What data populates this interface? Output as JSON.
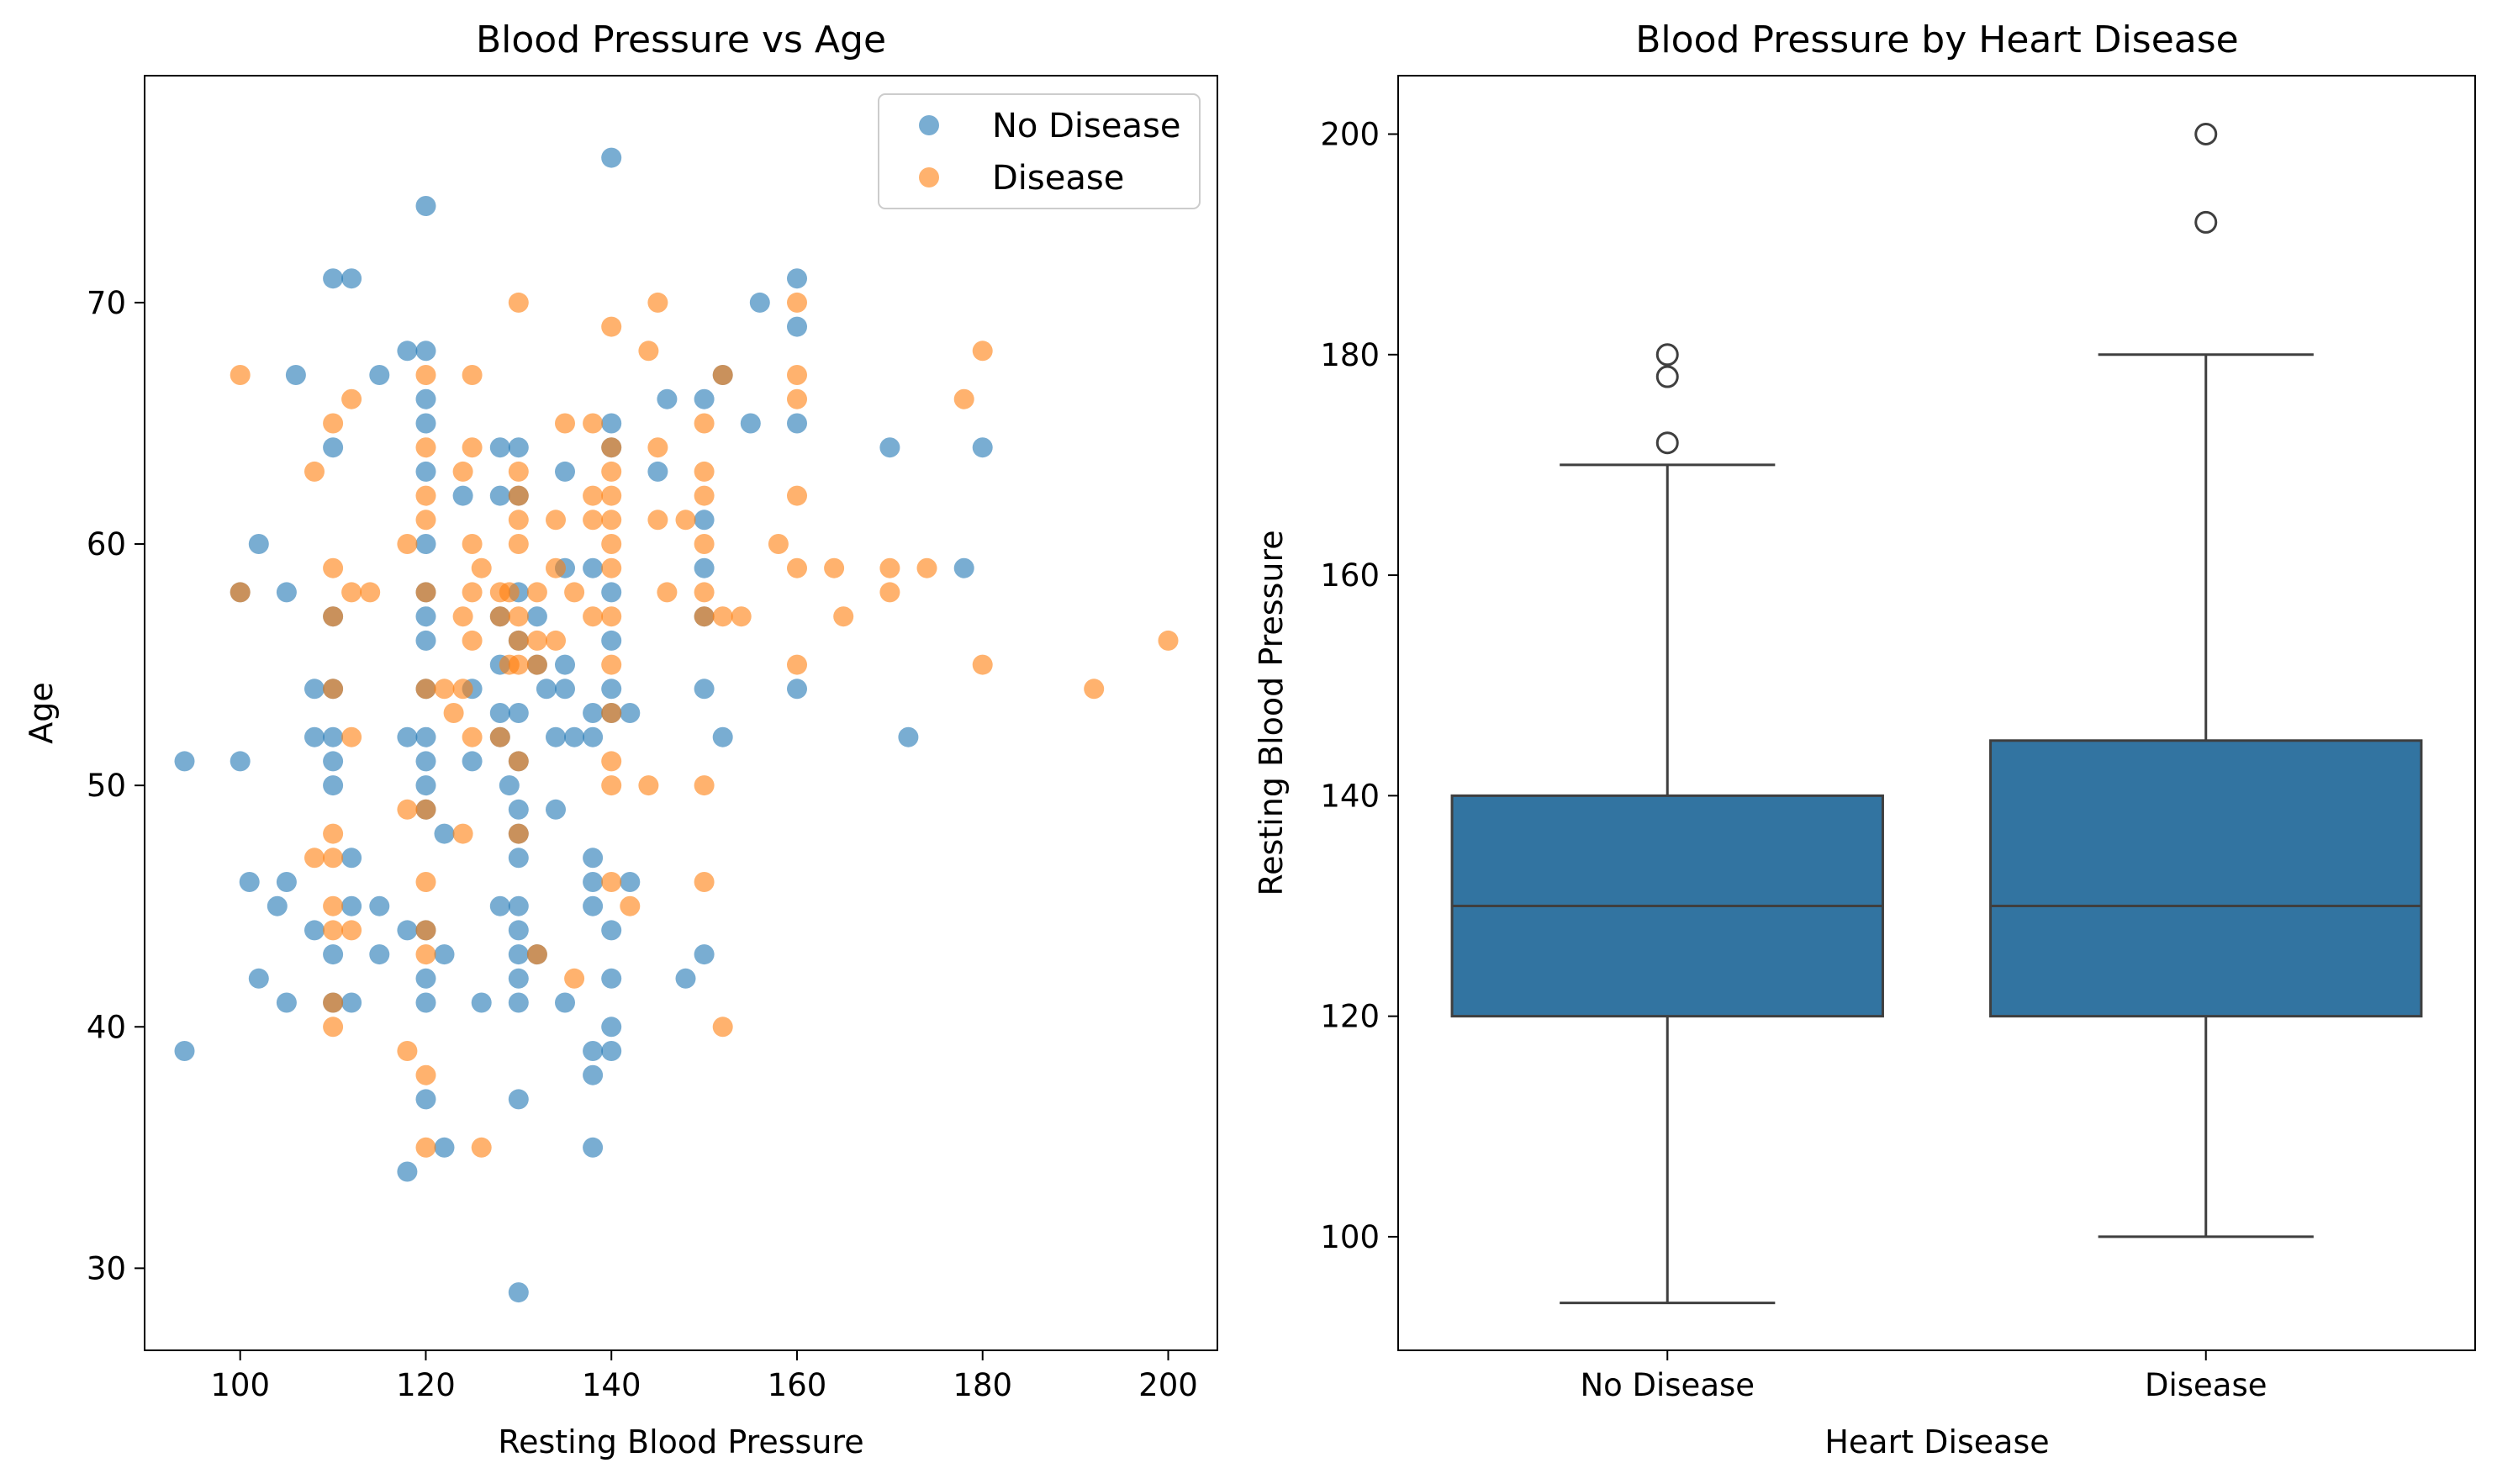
{
  "colors": {
    "no_disease": "#1f77b4",
    "disease": "#ff7f0e",
    "box_fill": "#3274a1",
    "box_edge": "#3f3f3f"
  },
  "chart_data": [
    {
      "type": "scatter",
      "title": "Blood Pressure vs Age",
      "xlabel": "Resting Blood Pressure",
      "ylabel": "Age",
      "xlim": [
        89.7,
        205.3
      ],
      "ylim": [
        26.6,
        79.4
      ],
      "xticks": [
        100,
        120,
        140,
        160,
        180,
        200
      ],
      "yticks": [
        30,
        40,
        50,
        60,
        70
      ],
      "grid": false,
      "legend_position": "top-right",
      "series": [
        {
          "name": "No Disease",
          "color": "#1f77b4",
          "points": [
            [
              94,
              51
            ],
            [
              94,
              39
            ],
            [
              100,
              51
            ],
            [
              100,
              58
            ],
            [
              101,
              46
            ],
            [
              102,
              60
            ],
            [
              102,
              42
            ],
            [
              104,
              45
            ],
            [
              105,
              58
            ],
            [
              105,
              46
            ],
            [
              105,
              41
            ],
            [
              106,
              67
            ],
            [
              108,
              54
            ],
            [
              108,
              52
            ],
            [
              108,
              44
            ],
            [
              110,
              71
            ],
            [
              110,
              64
            ],
            [
              110,
              57
            ],
            [
              110,
              54
            ],
            [
              110,
              52
            ],
            [
              110,
              51
            ],
            [
              110,
              50
            ],
            [
              110,
              43
            ],
            [
              110,
              41
            ],
            [
              112,
              71
            ],
            [
              112,
              47
            ],
            [
              112,
              45
            ],
            [
              112,
              41
            ],
            [
              115,
              67
            ],
            [
              115,
              45
            ],
            [
              115,
              43
            ],
            [
              118,
              68
            ],
            [
              118,
              52
            ],
            [
              118,
              44
            ],
            [
              118,
              34
            ],
            [
              120,
              74
            ],
            [
              120,
              68
            ],
            [
              120,
              66
            ],
            [
              120,
              65
            ],
            [
              120,
              63
            ],
            [
              120,
              60
            ],
            [
              120,
              58
            ],
            [
              120,
              57
            ],
            [
              120,
              56
            ],
            [
              120,
              54
            ],
            [
              120,
              52
            ],
            [
              120,
              51
            ],
            [
              120,
              50
            ],
            [
              120,
              49
            ],
            [
              120,
              44
            ],
            [
              120,
              42
            ],
            [
              120,
              41
            ],
            [
              120,
              37
            ],
            [
              122,
              48
            ],
            [
              122,
              43
            ],
            [
              122,
              35
            ],
            [
              124,
              62
            ],
            [
              125,
              54
            ],
            [
              125,
              51
            ],
            [
              126,
              41
            ],
            [
              128,
              64
            ],
            [
              128,
              62
            ],
            [
              128,
              57
            ],
            [
              128,
              55
            ],
            [
              128,
              53
            ],
            [
              128,
              52
            ],
            [
              128,
              45
            ],
            [
              129,
              50
            ],
            [
              130,
              64
            ],
            [
              130,
              62
            ],
            [
              130,
              58
            ],
            [
              130,
              56
            ],
            [
              130,
              53
            ],
            [
              130,
              51
            ],
            [
              130,
              49
            ],
            [
              130,
              48
            ],
            [
              130,
              47
            ],
            [
              130,
              45
            ],
            [
              130,
              44
            ],
            [
              130,
              43
            ],
            [
              130,
              42
            ],
            [
              130,
              41
            ],
            [
              130,
              37
            ],
            [
              130,
              29
            ],
            [
              132,
              57
            ],
            [
              132,
              55
            ],
            [
              132,
              43
            ],
            [
              133,
              54
            ],
            [
              134,
              52
            ],
            [
              134,
              49
            ],
            [
              135,
              63
            ],
            [
              135,
              59
            ],
            [
              135,
              55
            ],
            [
              135,
              54
            ],
            [
              135,
              41
            ],
            [
              136,
              52
            ],
            [
              138,
              59
            ],
            [
              138,
              53
            ],
            [
              138,
              52
            ],
            [
              138,
              47
            ],
            [
              138,
              46
            ],
            [
              138,
              45
            ],
            [
              138,
              39
            ],
            [
              138,
              38
            ],
            [
              138,
              35
            ],
            [
              140,
              76
            ],
            [
              140,
              65
            ],
            [
              140,
              64
            ],
            [
              140,
              58
            ],
            [
              140,
              56
            ],
            [
              140,
              54
            ],
            [
              140,
              53
            ],
            [
              140,
              44
            ],
            [
              140,
              42
            ],
            [
              140,
              40
            ],
            [
              140,
              39
            ],
            [
              142,
              53
            ],
            [
              142,
              46
            ],
            [
              145,
              63
            ],
            [
              146,
              66
            ],
            [
              148,
              42
            ],
            [
              150,
              66
            ],
            [
              150,
              61
            ],
            [
              150,
              59
            ],
            [
              150,
              57
            ],
            [
              150,
              54
            ],
            [
              150,
              43
            ],
            [
              152,
              67
            ],
            [
              152,
              52
            ],
            [
              155,
              65
            ],
            [
              156,
              70
            ],
            [
              160,
              71
            ],
            [
              160,
              69
            ],
            [
              160,
              65
            ],
            [
              160,
              54
            ],
            [
              170,
              64
            ],
            [
              172,
              52
            ],
            [
              178,
              59
            ],
            [
              180,
              64
            ]
          ]
        },
        {
          "name": "Disease",
          "color": "#ff7f0e",
          "points": [
            [
              100,
              67
            ],
            [
              100,
              58
            ],
            [
              108,
              63
            ],
            [
              108,
              47
            ],
            [
              110,
              65
            ],
            [
              110,
              59
            ],
            [
              110,
              57
            ],
            [
              110,
              54
            ],
            [
              110,
              48
            ],
            [
              110,
              47
            ],
            [
              110,
              45
            ],
            [
              110,
              44
            ],
            [
              110,
              41
            ],
            [
              110,
              40
            ],
            [
              112,
              66
            ],
            [
              112,
              58
            ],
            [
              112,
              52
            ],
            [
              112,
              44
            ],
            [
              114,
              58
            ],
            [
              118,
              60
            ],
            [
              118,
              49
            ],
            [
              118,
              39
            ],
            [
              120,
              67
            ],
            [
              120,
              64
            ],
            [
              120,
              62
            ],
            [
              120,
              61
            ],
            [
              120,
              58
            ],
            [
              120,
              54
            ],
            [
              120,
              49
            ],
            [
              120,
              46
            ],
            [
              120,
              44
            ],
            [
              120,
              43
            ],
            [
              120,
              38
            ],
            [
              120,
              35
            ],
            [
              122,
              54
            ],
            [
              123,
              53
            ],
            [
              124,
              63
            ],
            [
              124,
              57
            ],
            [
              124,
              54
            ],
            [
              124,
              48
            ],
            [
              125,
              67
            ],
            [
              125,
              64
            ],
            [
              125,
              60
            ],
            [
              125,
              58
            ],
            [
              125,
              56
            ],
            [
              125,
              52
            ],
            [
              126,
              59
            ],
            [
              126,
              35
            ],
            [
              128,
              58
            ],
            [
              128,
              57
            ],
            [
              128,
              52
            ],
            [
              129,
              58
            ],
            [
              129,
              55
            ],
            [
              130,
              70
            ],
            [
              130,
              63
            ],
            [
              130,
              62
            ],
            [
              130,
              61
            ],
            [
              130,
              60
            ],
            [
              130,
              57
            ],
            [
              130,
              56
            ],
            [
              130,
              55
            ],
            [
              130,
              51
            ],
            [
              130,
              48
            ],
            [
              132,
              58
            ],
            [
              132,
              56
            ],
            [
              132,
              55
            ],
            [
              132,
              43
            ],
            [
              134,
              61
            ],
            [
              134,
              59
            ],
            [
              134,
              56
            ],
            [
              135,
              65
            ],
            [
              136,
              58
            ],
            [
              136,
              42
            ],
            [
              138,
              65
            ],
            [
              138,
              62
            ],
            [
              138,
              61
            ],
            [
              138,
              57
            ],
            [
              140,
              69
            ],
            [
              140,
              64
            ],
            [
              140,
              63
            ],
            [
              140,
              62
            ],
            [
              140,
              61
            ],
            [
              140,
              60
            ],
            [
              140,
              59
            ],
            [
              140,
              57
            ],
            [
              140,
              55
            ],
            [
              140,
              53
            ],
            [
              140,
              51
            ],
            [
              140,
              50
            ],
            [
              140,
              46
            ],
            [
              142,
              45
            ],
            [
              144,
              68
            ],
            [
              144,
              50
            ],
            [
              145,
              70
            ],
            [
              145,
              64
            ],
            [
              145,
              61
            ],
            [
              146,
              58
            ],
            [
              148,
              61
            ],
            [
              150,
              65
            ],
            [
              150,
              63
            ],
            [
              150,
              62
            ],
            [
              150,
              60
            ],
            [
              150,
              58
            ],
            [
              150,
              57
            ],
            [
              150,
              50
            ],
            [
              150,
              46
            ],
            [
              152,
              67
            ],
            [
              152,
              57
            ],
            [
              152,
              40
            ],
            [
              154,
              57
            ],
            [
              158,
              60
            ],
            [
              160,
              70
            ],
            [
              160,
              67
            ],
            [
              160,
              66
            ],
            [
              160,
              62
            ],
            [
              160,
              59
            ],
            [
              160,
              55
            ],
            [
              164,
              59
            ],
            [
              165,
              57
            ],
            [
              170,
              59
            ],
            [
              170,
              58
            ],
            [
              174,
              59
            ],
            [
              178,
              66
            ],
            [
              180,
              68
            ],
            [
              180,
              55
            ],
            [
              192,
              54
            ],
            [
              200,
              56
            ]
          ]
        }
      ]
    },
    {
      "type": "box",
      "title": "Blood Pressure by Heart Disease",
      "xlabel": "Heart Disease",
      "ylabel": "Resting Blood Pressure",
      "ylim": [
        89.7,
        205.3
      ],
      "yticks": [
        100,
        120,
        140,
        160,
        180,
        200
      ],
      "categories": [
        "No Disease",
        "Disease"
      ],
      "grid": false,
      "boxes": [
        {
          "category": "No Disease",
          "whisker_low": 94,
          "q1": 120,
          "median": 130,
          "q3": 140,
          "whisker_high": 170,
          "outliers": [
            172,
            178,
            180
          ]
        },
        {
          "category": "Disease",
          "whisker_low": 100,
          "q1": 120,
          "median": 130,
          "q3": 145,
          "whisker_high": 180,
          "outliers": [
            192,
            200
          ]
        }
      ]
    }
  ]
}
